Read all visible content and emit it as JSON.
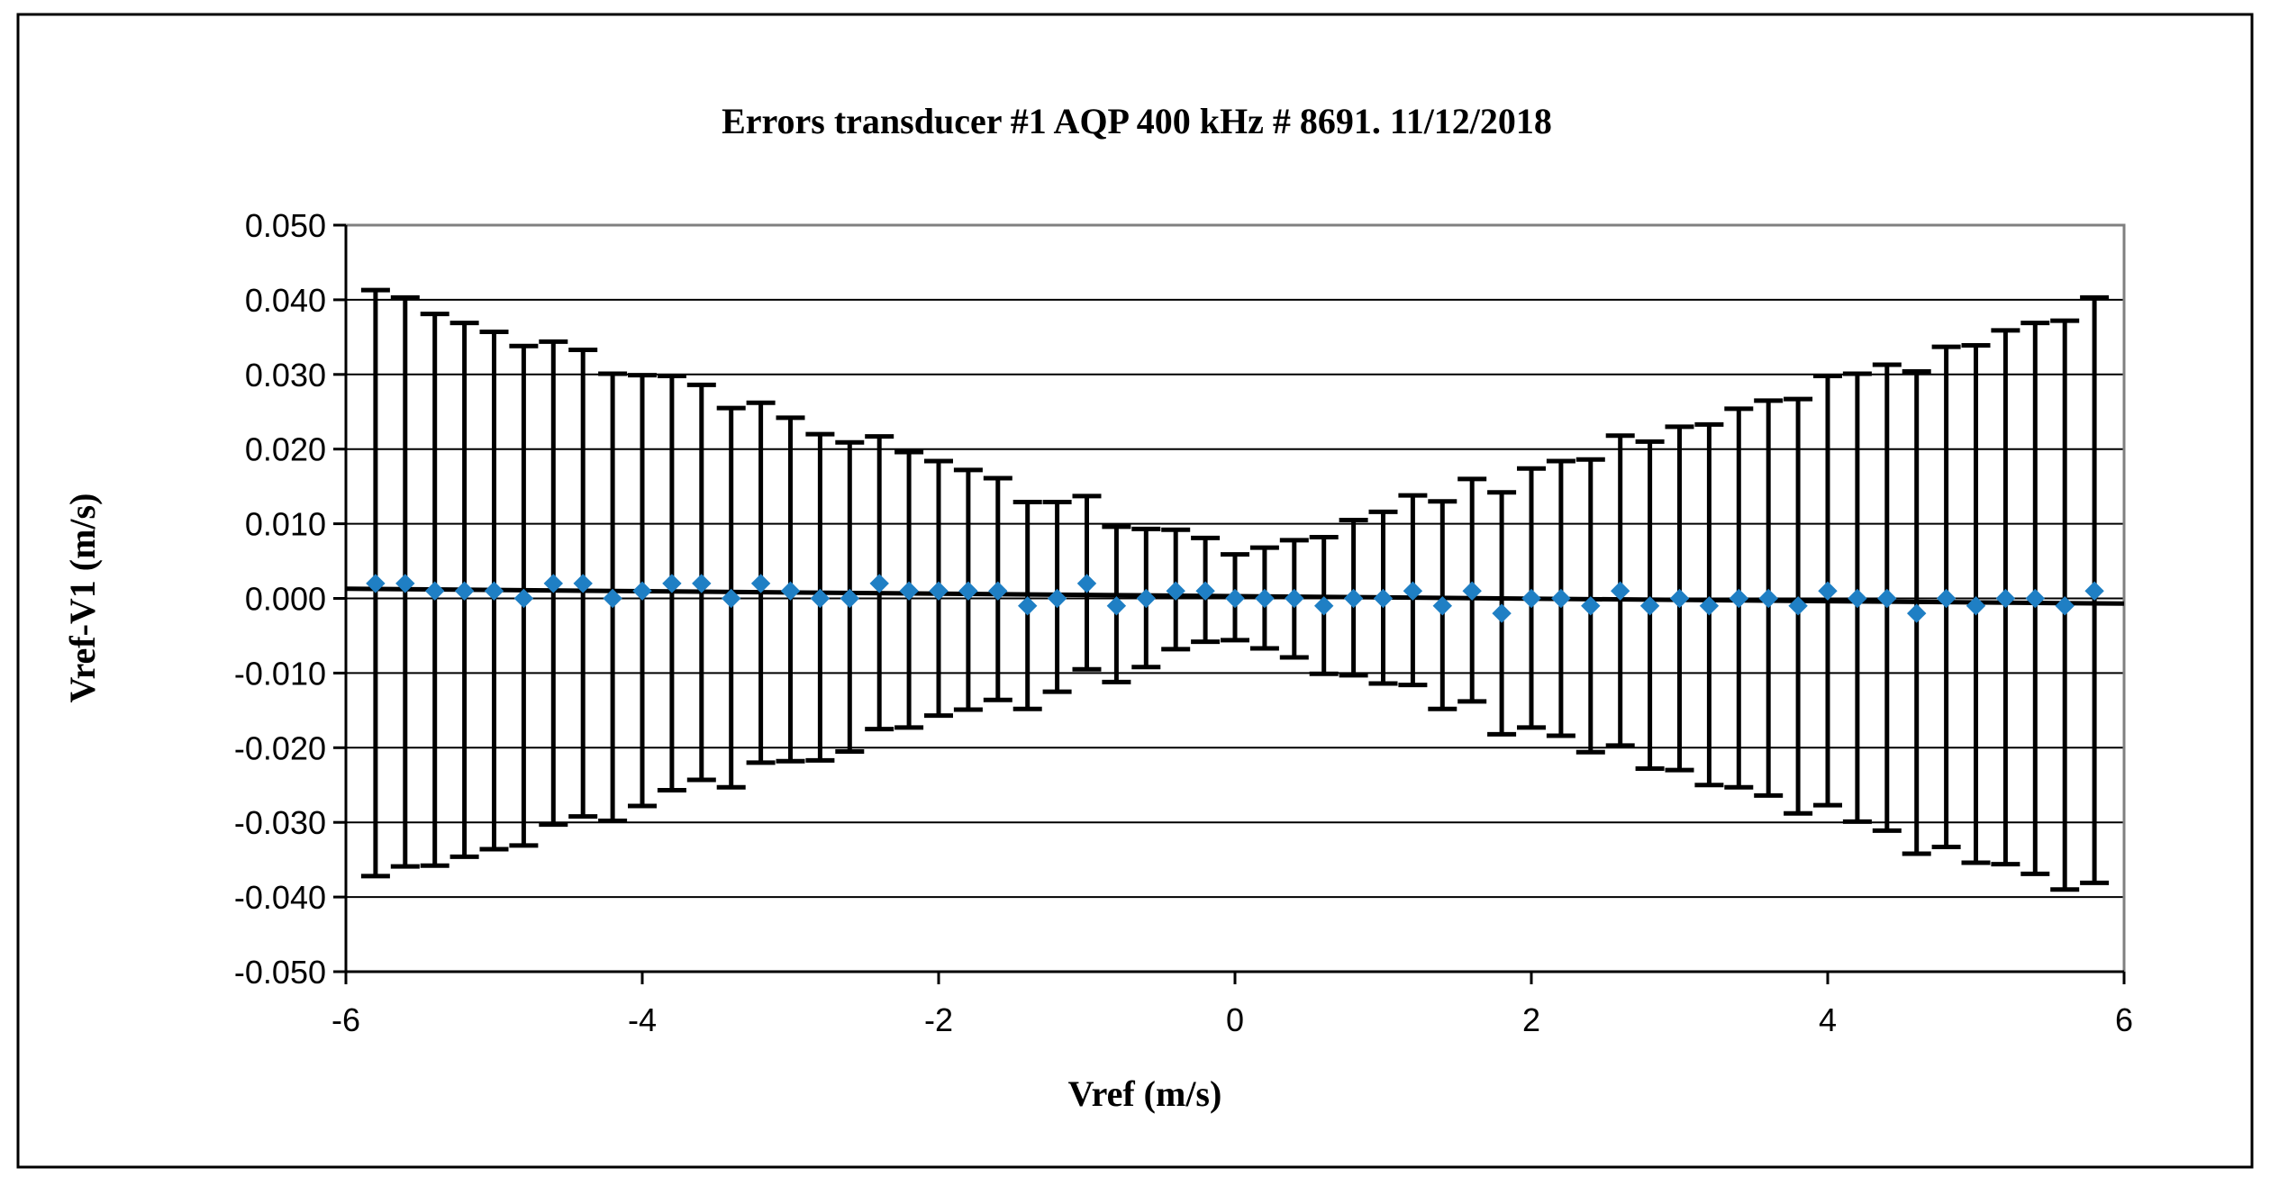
{
  "chart_data": {
    "type": "scatter",
    "title": "Errors transducer  #1 AQP  400 kHz  # 8691. 11/12/2018",
    "xlabel": "Vref (m/s)",
    "ylabel": "Vref-V1  (m/s)",
    "xlim": [
      -6,
      6
    ],
    "ylim": [
      -0.05,
      0.05
    ],
    "x_ticks": [
      -6,
      -4,
      -2,
      0,
      2,
      4,
      6
    ],
    "x_tick_labels": [
      "-6",
      "-4",
      "-2",
      "0",
      "2",
      "4",
      "6"
    ],
    "y_ticks": [
      0.05,
      0.04,
      0.03,
      0.02,
      0.01,
      0,
      -0.01,
      -0.02,
      -0.03,
      -0.04,
      -0.05
    ],
    "y_tick_labels": [
      "0.050",
      "0.040",
      "0.030",
      "0.020",
      "0.010",
      "0.000",
      "-0.010",
      "-0.020",
      "-0.030",
      "-0.040",
      "-0.050"
    ],
    "grid": "horizontal",
    "legend": "none",
    "marker_color": "#1f7fc4",
    "errorbar_color": "#000000",
    "trend_line": {
      "x": [
        -6,
        6
      ],
      "y": [
        0.0013,
        -0.0007
      ],
      "color": "#000000"
    },
    "series": [
      {
        "x": [
          -5.8,
          -5.6,
          -5.4,
          -5.2,
          -5.0,
          -4.8,
          -4.6,
          -4.4,
          -4.2,
          -4.0,
          -3.8,
          -3.6,
          -3.4,
          -3.2,
          -3.0,
          -2.8,
          -2.6,
          -2.4,
          -2.2,
          -2.0,
          -1.8,
          -1.6,
          -1.4,
          -1.2,
          -1.0,
          -0.8,
          -0.6,
          -0.4,
          -0.2,
          0.0,
          0.2,
          0.4,
          0.6,
          0.8,
          1.0,
          1.2,
          1.4,
          1.6,
          1.8,
          2.0,
          2.2,
          2.4,
          2.6,
          2.8,
          3.0,
          3.2,
          3.4,
          3.6,
          3.8,
          4.0,
          4.2,
          4.4,
          4.6,
          4.8,
          5.0,
          5.2,
          5.4,
          5.6,
          5.8
        ],
        "y": [
          0.002,
          0.002,
          0.001,
          0.001,
          0.001,
          0.0,
          0.002,
          0.002,
          0.0,
          0.001,
          0.002,
          0.002,
          0.0,
          0.002,
          0.001,
          0.0,
          0.0,
          0.002,
          0.001,
          0.001,
          0.001,
          0.001,
          -0.001,
          0.0,
          0.002,
          -0.001,
          0.0,
          0.001,
          0.001,
          0.0,
          0.0,
          0.0,
          -0.001,
          0.0,
          0.0,
          0.001,
          -0.001,
          0.001,
          -0.002,
          0.0,
          0.0,
          -0.001,
          0.001,
          -0.001,
          0.0,
          -0.001,
          0.0,
          0.0,
          -0.001,
          0.001,
          0.0,
          0.0,
          -0.002,
          0.0,
          -0.001,
          0.0,
          0.0,
          -0.001,
          0.001
        ],
        "err_upper": [
          0.0413,
          0.0403,
          0.0381,
          0.0369,
          0.0357,
          0.0338,
          0.0344,
          0.0333,
          0.0301,
          0.0299,
          0.0298,
          0.0286,
          0.0255,
          0.0262,
          0.0242,
          0.022,
          0.0209,
          0.0217,
          0.0196,
          0.0184,
          0.0172,
          0.0161,
          0.0129,
          0.0129,
          0.0137,
          0.0096,
          0.0093,
          0.0092,
          0.0081,
          0.0059,
          0.0068,
          0.0078,
          0.0082,
          0.0105,
          0.0116,
          0.0138,
          0.013,
          0.016,
          0.0142,
          0.0174,
          0.0184,
          0.0186,
          0.0218,
          0.021,
          0.023,
          0.0233,
          0.0254,
          0.0265,
          0.0267,
          0.0298,
          0.0301,
          0.0313,
          0.0304,
          0.0337,
          0.0339,
          0.0359,
          0.0369,
          0.0372,
          0.0403
        ],
        "err_lower": [
          -0.0372,
          -0.0359,
          -0.0358,
          -0.0346,
          -0.0336,
          -0.0331,
          -0.0303,
          -0.0292,
          -0.0298,
          -0.0278,
          -0.0257,
          -0.0243,
          -0.0253,
          -0.022,
          -0.0218,
          -0.0217,
          -0.0205,
          -0.0175,
          -0.0173,
          -0.0157,
          -0.0149,
          -0.0136,
          -0.0148,
          -0.0125,
          -0.0095,
          -0.0112,
          -0.0092,
          -0.0068,
          -0.0058,
          -0.0056,
          -0.0067,
          -0.0079,
          -0.0101,
          -0.0103,
          -0.0114,
          -0.0116,
          -0.0148,
          -0.0138,
          -0.0182,
          -0.0173,
          -0.0184,
          -0.0206,
          -0.0197,
          -0.0228,
          -0.023,
          -0.025,
          -0.0253,
          -0.0264,
          -0.0288,
          -0.0277,
          -0.0299,
          -0.0311,
          -0.0342,
          -0.0333,
          -0.0354,
          -0.0356,
          -0.0369,
          -0.039,
          -0.0381
        ]
      }
    ]
  }
}
